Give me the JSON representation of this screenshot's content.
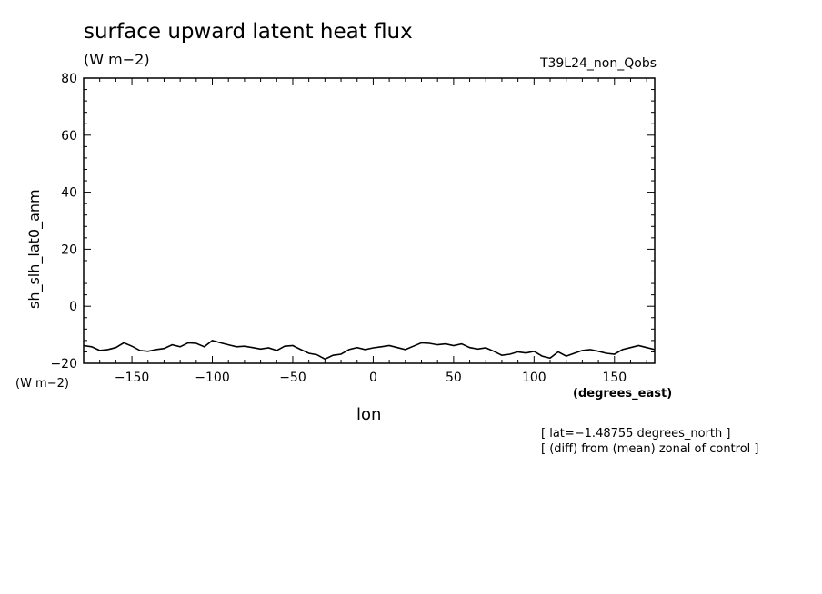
{
  "header": {
    "title": "surface upward latent heat flux",
    "units": "(W m−2)",
    "run_label": "T39L24_non_Qobs"
  },
  "footer": {
    "note_lat": "[ lat=−1.48755 degrees_north ]",
    "note_diff": "[ (diff) from (mean) zonal of control ]"
  },
  "chart_data": {
    "type": "line",
    "title": "surface upward latent heat flux",
    "ylabel": "sh_slh_lat0_anm",
    "y_units": "(W m−2)",
    "xlabel": "lon",
    "x_units": "(degrees_east)",
    "xlim": [
      -180,
      175
    ],
    "ylim": [
      -20,
      80
    ],
    "xticks": [
      -150,
      -100,
      -50,
      0,
      50,
      100,
      150
    ],
    "xtick_labels": [
      "−150",
      "−100",
      "−50",
      "0",
      "50",
      "100",
      "150"
    ],
    "yticks": [
      -20,
      0,
      20,
      40,
      60,
      80
    ],
    "ytick_labels": [
      "−20",
      "0",
      "20",
      "40",
      "60",
      "80"
    ],
    "grid": false,
    "series": [
      {
        "color": "#000000",
        "x": [
          -180,
          -175,
          -170,
          -165,
          -160,
          -155,
          -150,
          -145,
          -140,
          -135,
          -130,
          -125,
          -120,
          -115,
          -110,
          -105,
          -100,
          -95,
          -90,
          -85,
          -80,
          -75,
          -70,
          -65,
          -60,
          -55,
          -50,
          -45,
          -40,
          -35,
          -30,
          -25,
          -20,
          -15,
          -10,
          -5,
          0,
          5,
          10,
          15,
          20,
          25,
          30,
          35,
          40,
          45,
          50,
          55,
          60,
          65,
          70,
          75,
          80,
          85,
          90,
          95,
          100,
          105,
          110,
          115,
          120,
          125,
          130,
          135,
          140,
          145,
          150,
          155,
          160,
          165,
          170,
          175
        ],
        "y": [
          -13.8,
          -14.2,
          -15.5,
          -15.2,
          -14.5,
          -12.8,
          -14.0,
          -15.5,
          -15.8,
          -15.2,
          -14.8,
          -13.5,
          -14.2,
          -12.8,
          -13.0,
          -14.2,
          -12.0,
          -12.8,
          -13.5,
          -14.2,
          -14.0,
          -14.5,
          -15.0,
          -14.6,
          -15.5,
          -14.0,
          -13.8,
          -15.2,
          -16.5,
          -17.0,
          -18.5,
          -17.2,
          -16.8,
          -15.2,
          -14.5,
          -15.2,
          -14.6,
          -14.2,
          -13.8,
          -14.5,
          -15.2,
          -14.0,
          -12.8,
          -13.0,
          -13.5,
          -13.2,
          -13.8,
          -13.2,
          -14.5,
          -15.0,
          -14.6,
          -15.8,
          -17.2,
          -16.8,
          -16.0,
          -16.4,
          -15.8,
          -17.5,
          -18.2,
          -16.0,
          -17.5,
          -16.5,
          -15.5,
          -15.2,
          -15.8,
          -16.5,
          -16.8,
          -15.2,
          -14.5,
          -13.8,
          -14.5,
          -15.2
        ]
      }
    ]
  }
}
